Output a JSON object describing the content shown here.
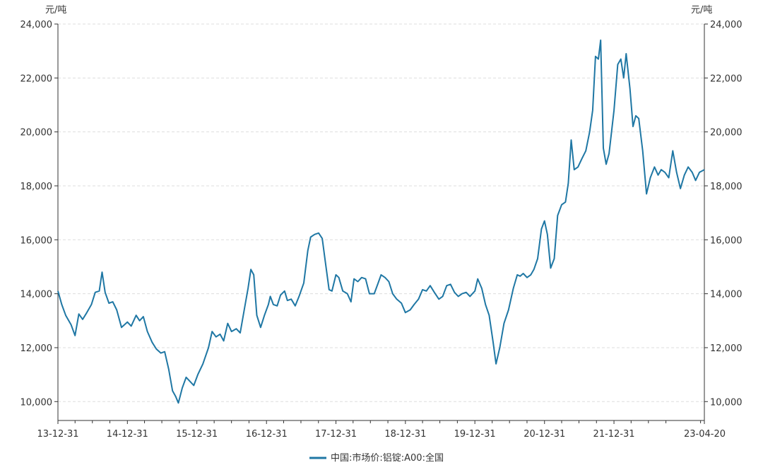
{
  "chart_data": {
    "type": "line",
    "x_tick_labels": [
      "13-12-31",
      "14-12-31",
      "15-12-31",
      "16-12-31",
      "17-12-31",
      "18-12-31",
      "19-12-31",
      "20-12-31",
      "21-12-31",
      "23-04-20"
    ],
    "y_tick_labels": [
      "10,000",
      "12,000",
      "14,000",
      "16,000",
      "18,000",
      "20,000",
      "22,000",
      "24,000"
    ],
    "y_unit_left": "元/吨",
    "y_unit_right": "元/吨",
    "ylim": [
      9300,
      24000
    ],
    "grid": true,
    "legend_position": "bottom-center",
    "series": [
      {
        "name": "中国:市场价:铝锭:A00:全国",
        "color": "#1f77a4",
        "points": [
          [
            "2013-12-31",
            14100
          ],
          [
            "2014-01-20",
            13600
          ],
          [
            "2014-02-10",
            13200
          ],
          [
            "2014-03-10",
            12850
          ],
          [
            "2014-03-31",
            12450
          ],
          [
            "2014-04-20",
            13250
          ],
          [
            "2014-05-10",
            13050
          ],
          [
            "2014-06-01",
            13300
          ],
          [
            "2014-06-25",
            13600
          ],
          [
            "2014-07-15",
            14050
          ],
          [
            "2014-08-05",
            14100
          ],
          [
            "2014-08-20",
            14800
          ],
          [
            "2014-09-05",
            14050
          ],
          [
            "2014-09-25",
            13650
          ],
          [
            "2014-10-15",
            13700
          ],
          [
            "2014-11-05",
            13400
          ],
          [
            "2014-11-30",
            12750
          ],
          [
            "2014-12-31",
            12950
          ],
          [
            "2015-01-20",
            12800
          ],
          [
            "2015-02-15",
            13200
          ],
          [
            "2015-03-05",
            13000
          ],
          [
            "2015-03-25",
            13150
          ],
          [
            "2015-04-15",
            12600
          ],
          [
            "2015-05-10",
            12200
          ],
          [
            "2015-06-01",
            11950
          ],
          [
            "2015-06-25",
            11800
          ],
          [
            "2015-07-15",
            11850
          ],
          [
            "2015-08-05",
            11200
          ],
          [
            "2015-08-25",
            10400
          ],
          [
            "2015-09-10",
            10200
          ],
          [
            "2015-09-25",
            9950
          ],
          [
            "2015-10-15",
            10500
          ],
          [
            "2015-11-05",
            10900
          ],
          [
            "2015-11-25",
            10750
          ],
          [
            "2015-12-15",
            10600
          ],
          [
            "2016-01-05",
            11000
          ],
          [
            "2016-02-01",
            11400
          ],
          [
            "2016-03-01",
            12000
          ],
          [
            "2016-03-20",
            12600
          ],
          [
            "2016-04-10",
            12400
          ],
          [
            "2016-05-01",
            12500
          ],
          [
            "2016-05-20",
            12250
          ],
          [
            "2016-06-10",
            12900
          ],
          [
            "2016-06-30",
            12600
          ],
          [
            "2016-07-25",
            12700
          ],
          [
            "2016-08-15",
            12550
          ],
          [
            "2016-09-05",
            13400
          ],
          [
            "2016-09-25",
            14200
          ],
          [
            "2016-10-10",
            14900
          ],
          [
            "2016-10-25",
            14700
          ],
          [
            "2016-11-10",
            13200
          ],
          [
            "2016-11-30",
            12750
          ],
          [
            "2016-12-20",
            13200
          ],
          [
            "2017-01-10",
            13600
          ],
          [
            "2017-01-20",
            13900
          ],
          [
            "2017-02-05",
            13600
          ],
          [
            "2017-02-25",
            13550
          ],
          [
            "2017-03-15",
            13950
          ],
          [
            "2017-04-05",
            14100
          ],
          [
            "2017-04-20",
            13750
          ],
          [
            "2017-05-10",
            13800
          ],
          [
            "2017-05-31",
            13550
          ],
          [
            "2017-06-20",
            13900
          ],
          [
            "2017-07-15",
            14400
          ],
          [
            "2017-08-05",
            15600
          ],
          [
            "2017-08-20",
            16100
          ],
          [
            "2017-09-10",
            16200
          ],
          [
            "2017-10-01",
            16250
          ],
          [
            "2017-10-20",
            16050
          ],
          [
            "2017-11-05",
            15200
          ],
          [
            "2017-11-25",
            14150
          ],
          [
            "2017-12-10",
            14100
          ],
          [
            "2017-12-31",
            14700
          ],
          [
            "2018-01-15",
            14600
          ],
          [
            "2018-02-05",
            14100
          ],
          [
            "2018-03-01",
            14000
          ],
          [
            "2018-03-20",
            13700
          ],
          [
            "2018-04-05",
            14550
          ],
          [
            "2018-04-25",
            14450
          ],
          [
            "2018-05-15",
            14600
          ],
          [
            "2018-06-05",
            14550
          ],
          [
            "2018-06-25",
            14000
          ],
          [
            "2018-07-20",
            14000
          ],
          [
            "2018-08-10",
            14400
          ],
          [
            "2018-08-25",
            14700
          ],
          [
            "2018-09-15",
            14600
          ],
          [
            "2018-10-05",
            14450
          ],
          [
            "2018-10-25",
            14000
          ],
          [
            "2018-11-15",
            13800
          ],
          [
            "2018-12-10",
            13650
          ],
          [
            "2018-12-31",
            13300
          ],
          [
            "2019-01-25",
            13400
          ],
          [
            "2019-02-15",
            13600
          ],
          [
            "2019-03-10",
            13800
          ],
          [
            "2019-03-31",
            14150
          ],
          [
            "2019-04-20",
            14100
          ],
          [
            "2019-05-10",
            14300
          ],
          [
            "2019-06-01",
            14050
          ],
          [
            "2019-06-25",
            13800
          ],
          [
            "2019-07-15",
            13900
          ],
          [
            "2019-08-05",
            14300
          ],
          [
            "2019-08-25",
            14350
          ],
          [
            "2019-09-15",
            14050
          ],
          [
            "2019-10-05",
            13900
          ],
          [
            "2019-10-25",
            14000
          ],
          [
            "2019-11-15",
            14050
          ],
          [
            "2019-12-05",
            13900
          ],
          [
            "2019-12-31",
            14100
          ],
          [
            "2020-01-15",
            14550
          ],
          [
            "2020-02-05",
            14200
          ],
          [
            "2020-02-25",
            13600
          ],
          [
            "2020-03-15",
            13200
          ],
          [
            "2020-04-05",
            12200
          ],
          [
            "2020-04-20",
            11400
          ],
          [
            "2020-05-10",
            12000
          ],
          [
            "2020-06-01",
            12900
          ],
          [
            "2020-06-25",
            13400
          ],
          [
            "2020-07-20",
            14200
          ],
          [
            "2020-08-10",
            14700
          ],
          [
            "2020-08-25",
            14650
          ],
          [
            "2020-09-10",
            14750
          ],
          [
            "2020-09-30",
            14600
          ],
          [
            "2020-10-20",
            14700
          ],
          [
            "2020-11-05",
            14900
          ],
          [
            "2020-11-25",
            15300
          ],
          [
            "2020-12-15",
            16400
          ],
          [
            "2020-12-31",
            16700
          ],
          [
            "2021-01-15",
            16200
          ],
          [
            "2021-02-01",
            14950
          ],
          [
            "2021-02-20",
            15300
          ],
          [
            "2021-03-10",
            16900
          ],
          [
            "2021-03-31",
            17300
          ],
          [
            "2021-04-20",
            17400
          ],
          [
            "2021-05-05",
            18100
          ],
          [
            "2021-05-20",
            19700
          ],
          [
            "2021-06-05",
            18600
          ],
          [
            "2021-06-25",
            18700
          ],
          [
            "2021-07-15",
            19000
          ],
          [
            "2021-08-05",
            19300
          ],
          [
            "2021-08-25",
            20000
          ],
          [
            "2021-09-10",
            20800
          ],
          [
            "2021-09-25",
            22800
          ],
          [
            "2021-10-10",
            22700
          ],
          [
            "2021-10-22",
            23400
          ],
          [
            "2021-11-05",
            19400
          ],
          [
            "2021-11-20",
            18800
          ],
          [
            "2021-12-05",
            19200
          ],
          [
            "2021-12-31",
            20800
          ],
          [
            "2022-01-20",
            22500
          ],
          [
            "2022-02-05",
            22700
          ],
          [
            "2022-02-20",
            22000
          ],
          [
            "2022-03-05",
            22900
          ],
          [
            "2022-03-25",
            21600
          ],
          [
            "2022-04-10",
            20200
          ],
          [
            "2022-04-25",
            20600
          ],
          [
            "2022-05-10",
            20500
          ],
          [
            "2022-05-31",
            19300
          ],
          [
            "2022-06-20",
            17700
          ],
          [
            "2022-07-10",
            18300
          ],
          [
            "2022-08-01",
            18700
          ],
          [
            "2022-08-20",
            18400
          ],
          [
            "2022-09-05",
            18600
          ],
          [
            "2022-09-25",
            18500
          ],
          [
            "2022-10-15",
            18300
          ],
          [
            "2022-11-05",
            19300
          ],
          [
            "2022-11-25",
            18500
          ],
          [
            "2022-12-15",
            17900
          ],
          [
            "2023-01-05",
            18400
          ],
          [
            "2023-01-25",
            18700
          ],
          [
            "2023-02-15",
            18500
          ],
          [
            "2023-03-05",
            18200
          ],
          [
            "2023-03-25",
            18500
          ],
          [
            "2023-04-20",
            18600
          ]
        ]
      }
    ]
  }
}
